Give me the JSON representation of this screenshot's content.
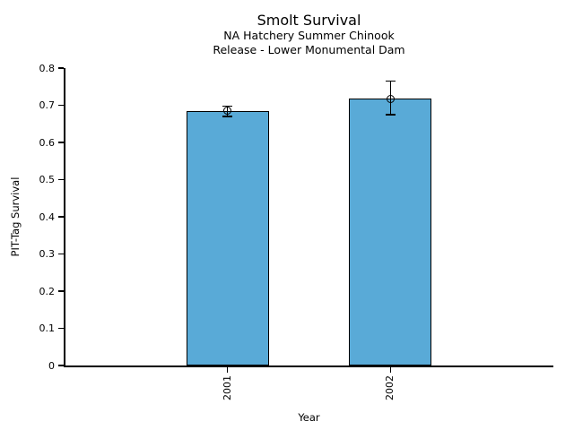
{
  "chart_data": {
    "type": "bar",
    "title": "Smolt Survival",
    "subtitle_line1": "NA Hatchery Summer Chinook",
    "subtitle_line2": "Release - Lower Monumental Dam",
    "categories": [
      "2001",
      "2002"
    ],
    "values": [
      0.685,
      0.717
    ],
    "error_low": [
      0.67,
      0.675
    ],
    "error_high": [
      0.698,
      0.765
    ],
    "marker": "open-circle",
    "xlabel": "Year",
    "ylabel": "PIT-Tag Survival",
    "ylim": [
      0,
      0.8
    ],
    "ytick_labels": [
      "0",
      "0.1",
      "0.2",
      "0.3",
      "0.4",
      "0.5",
      "0.6",
      "0.7",
      "0.8"
    ],
    "grid": false,
    "legend": false,
    "colors": {
      "bar_fill": "#59AAD7",
      "bar_edge": "#000000",
      "text": "#000000",
      "background": "#FFFFFF"
    }
  }
}
